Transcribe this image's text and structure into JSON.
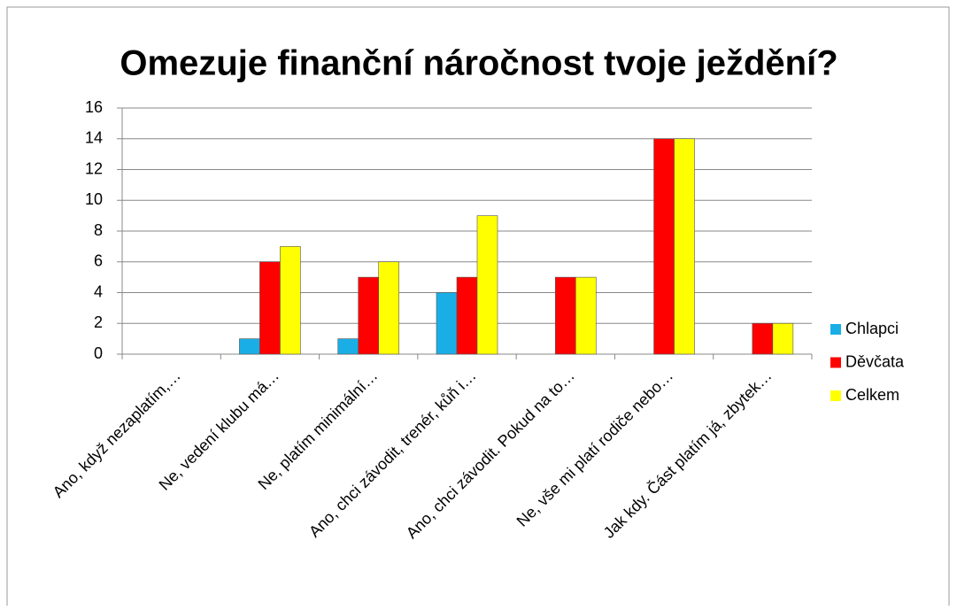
{
  "chart_data": {
    "type": "bar",
    "title": "Omezuje finanční náročnost tvoje ježdění?",
    "categories": [
      "Ano, když nezaplatím,…",
      "Ne, vedení klubu má…",
      "Ne, platím minimální…",
      "Ano, chci závodit, trenér, kůň i…",
      "Ano, chci závodit. Pokud na to…",
      "Ne, vše mi platí rodiče nebo…",
      "Jak kdy. Část platím já, zbytek…"
    ],
    "series": [
      {
        "name": "Chlapci",
        "color": "#1aaee6",
        "values": [
          0,
          1,
          1,
          4,
          0,
          0,
          0
        ]
      },
      {
        "name": "Děvčata",
        "color": "#ff0000",
        "values": [
          0,
          6,
          5,
          5,
          5,
          14,
          2
        ]
      },
      {
        "name": "Celkem",
        "color": "#ffff00",
        "values": [
          0,
          7,
          6,
          9,
          5,
          14,
          2
        ]
      }
    ],
    "ylim": [
      0,
      16
    ],
    "yticks": [
      0,
      2,
      4,
      6,
      8,
      10,
      12,
      14,
      16
    ],
    "grid": true,
    "legend": "right"
  }
}
